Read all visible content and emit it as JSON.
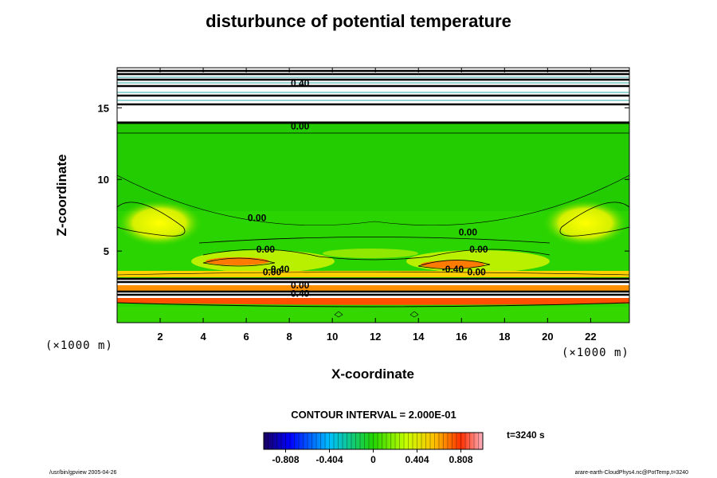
{
  "chart_data": {
    "type": "heatmap",
    "title": "disturbunce of potential temperature",
    "xlabel": "X-coordinate",
    "ylabel": "Z-coordinate",
    "x_unit": "(×1000 m)",
    "y_unit": "(×1000 m)",
    "xlim": [
      0,
      23.8
    ],
    "ylim": [
      0,
      17.8
    ],
    "x_ticks": [
      2,
      4,
      6,
      8,
      10,
      12,
      14,
      16,
      18,
      20,
      22
    ],
    "y_ticks": [
      5,
      10,
      15
    ],
    "contour_interval_label": "CONTOUR INTERVAL = 2.000E-01",
    "time_label": "t=3240 s",
    "colorbar": {
      "range": [
        -1.01,
        1.01
      ],
      "ticks": [
        -0.808,
        -0.404,
        0,
        0.404,
        0.808
      ],
      "tick_labels": [
        "-0.808",
        "-0.404",
        "0",
        "0.404",
        "0.808"
      ]
    },
    "contour_labels": [
      {
        "text": "0.00",
        "x": 6.5,
        "y": 7.1
      },
      {
        "text": "0.00",
        "x": 16.3,
        "y": 6.1
      },
      {
        "text": "0.00",
        "x": 6.9,
        "y": 4.9
      },
      {
        "text": "0.00",
        "x": 16.8,
        "y": 4.9
      },
      {
        "text": "-0.40",
        "x": 7.5,
        "y": 3.5
      },
      {
        "text": "0.00",
        "x": 7.2,
        "y": 3.3
      },
      {
        "text": "-0.40",
        "x": 15.6,
        "y": 3.5
      },
      {
        "text": "0.00",
        "x": 16.7,
        "y": 3.3
      },
      {
        "text": "0.00",
        "x": 8.5,
        "y": 2.4
      },
      {
        "text": "0.40",
        "x": 8.5,
        "y": 1.8
      },
      {
        "text": "0.00",
        "x": 8.5,
        "y": 13.5
      },
      {
        "text": "0.40",
        "x": 8.5,
        "y": 16.5
      }
    ]
  },
  "footer": {
    "left": "/usr/bin/gpview 2005-04-26",
    "right": "arare-earth-CloudPhys4.nc@PotTemp,t=3240"
  }
}
